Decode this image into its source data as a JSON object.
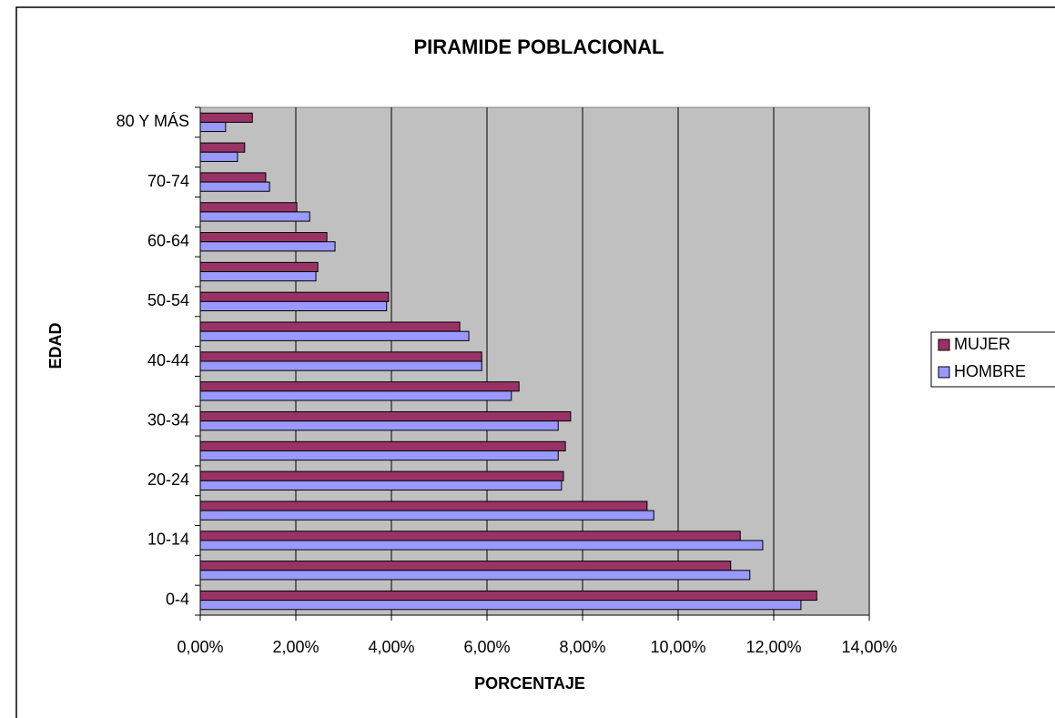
{
  "chart_data": {
    "type": "barh",
    "title": "PIRAMIDE POBLACIONAL",
    "x_label": "PORCENTAJE",
    "y_label": "EDAD",
    "categories": [
      "0-4",
      null,
      "10-14",
      null,
      "20-24",
      null,
      "30-34",
      null,
      "40-44",
      null,
      "50-54",
      null,
      "60-64",
      null,
      "70-74",
      null,
      "80 Y MÁS"
    ],
    "series": [
      {
        "name": "MUJER",
        "color": "#993366",
        "values": [
          12.9,
          11.1,
          11.3,
          9.35,
          7.6,
          7.64,
          7.75,
          6.67,
          5.89,
          5.43,
          3.94,
          2.46,
          2.65,
          2.02,
          1.37,
          0.93,
          1.09
        ]
      },
      {
        "name": "HOMBRE",
        "color": "#9999ff",
        "values": [
          12.57,
          11.5,
          11.77,
          9.49,
          7.56,
          7.49,
          7.49,
          6.51,
          5.89,
          5.62,
          3.9,
          2.42,
          2.82,
          2.29,
          1.45,
          0.78,
          0.53
        ]
      }
    ],
    "xlim": [
      0,
      14
    ],
    "xticks": [
      {
        "value": 0,
        "label": "0,00%"
      },
      {
        "value": 2,
        "label": "2,00%"
      },
      {
        "value": 4,
        "label": "4,00%"
      },
      {
        "value": 6,
        "label": "6,00%"
      },
      {
        "value": 8,
        "label": "8,00%"
      },
      {
        "value": 10,
        "label": "10,00%"
      },
      {
        "value": 12,
        "label": "12,00%"
      },
      {
        "value": 14,
        "label": "14,00%"
      }
    ],
    "grid": true,
    "legend": "right"
  }
}
